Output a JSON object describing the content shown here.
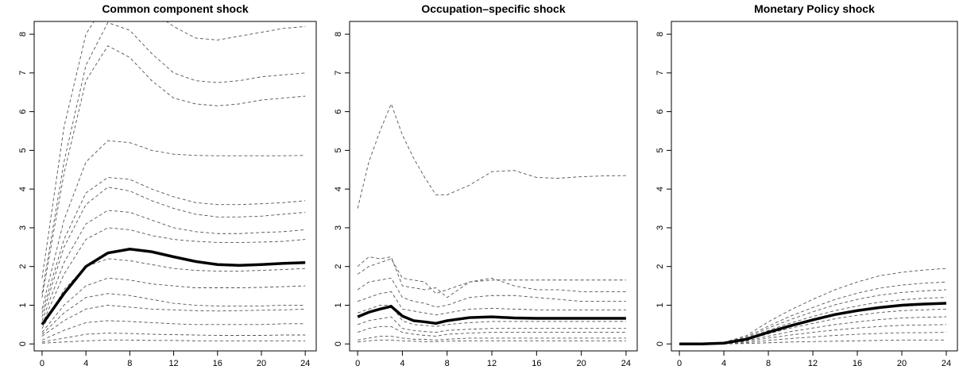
{
  "chart_data": [
    {
      "type": "line",
      "title": "Common component shock",
      "x": [
        0,
        2,
        4,
        6,
        8,
        10,
        12,
        14,
        16,
        18,
        20,
        22,
        24
      ],
      "xlim": [
        -0.72,
        25.0
      ],
      "ylim": [
        -0.18,
        8.33
      ],
      "xticks": [
        0,
        4,
        8,
        12,
        16,
        20,
        24
      ],
      "yticks": [
        0,
        1,
        2,
        3,
        4,
        5,
        6,
        7,
        8
      ],
      "series": [
        {
          "color": "#555555",
          "dashed": true,
          "values": [
            1.7,
            5.6,
            8.0,
            8.9,
            9.0,
            8.6,
            8.2,
            7.9,
            7.85,
            7.95,
            8.05,
            8.15,
            8.2
          ]
        },
        {
          "color": "#555555",
          "dashed": true,
          "values": [
            1.3,
            4.7,
            7.2,
            8.3,
            8.1,
            7.5,
            7.0,
            6.8,
            6.75,
            6.8,
            6.9,
            6.95,
            7.0
          ]
        },
        {
          "color": "#555555",
          "dashed": true,
          "values": [
            1.2,
            4.4,
            6.8,
            7.7,
            7.4,
            6.8,
            6.35,
            6.2,
            6.15,
            6.2,
            6.3,
            6.35,
            6.4
          ]
        },
        {
          "color": "#555555",
          "dashed": true,
          "values": [
            0.9,
            3.2,
            4.7,
            5.25,
            5.2,
            5.0,
            4.9,
            4.87,
            4.86,
            4.86,
            4.86,
            4.86,
            4.87
          ]
        },
        {
          "color": "#555555",
          "dashed": true,
          "values": [
            0.8,
            2.7,
            3.9,
            4.3,
            4.25,
            4.0,
            3.8,
            3.65,
            3.6,
            3.6,
            3.62,
            3.65,
            3.7
          ]
        },
        {
          "color": "#555555",
          "dashed": true,
          "values": [
            0.7,
            2.5,
            3.6,
            4.05,
            3.95,
            3.7,
            3.5,
            3.35,
            3.28,
            3.28,
            3.3,
            3.35,
            3.4
          ]
        },
        {
          "color": "#555555",
          "dashed": true,
          "values": [
            0.6,
            2.1,
            3.1,
            3.45,
            3.4,
            3.2,
            3.0,
            2.9,
            2.85,
            2.85,
            2.88,
            2.9,
            2.95
          ]
        },
        {
          "color": "#555555",
          "dashed": true,
          "values": [
            0.5,
            1.8,
            2.7,
            3.0,
            2.95,
            2.8,
            2.7,
            2.65,
            2.62,
            2.62,
            2.63,
            2.65,
            2.7
          ]
        },
        {
          "color": "#555555",
          "dashed": true,
          "values": [
            0.4,
            1.4,
            2.0,
            2.2,
            2.15,
            2.05,
            1.95,
            1.9,
            1.88,
            1.88,
            1.9,
            1.92,
            1.95
          ]
        },
        {
          "color": "#555555",
          "dashed": true,
          "values": [
            0.3,
            1.0,
            1.5,
            1.7,
            1.65,
            1.55,
            1.5,
            1.45,
            1.45,
            1.45,
            1.46,
            1.48,
            1.5
          ]
        },
        {
          "color": "#555555",
          "dashed": true,
          "values": [
            0.25,
            0.8,
            1.2,
            1.3,
            1.25,
            1.15,
            1.05,
            1.0,
            0.98,
            0.98,
            0.98,
            1.0,
            1.0
          ]
        },
        {
          "color": "#555555",
          "dashed": true,
          "values": [
            0.2,
            0.6,
            0.9,
            1.0,
            0.95,
            0.9,
            0.88,
            0.86,
            0.85,
            0.86,
            0.87,
            0.88,
            0.9
          ]
        },
        {
          "color": "#555555",
          "dashed": true,
          "values": [
            0.1,
            0.35,
            0.55,
            0.6,
            0.58,
            0.55,
            0.52,
            0.5,
            0.5,
            0.5,
            0.5,
            0.52,
            0.52
          ]
        },
        {
          "color": "#555555",
          "dashed": true,
          "values": [
            0.05,
            0.15,
            0.25,
            0.28,
            0.27,
            0.25,
            0.24,
            0.23,
            0.22,
            0.22,
            0.22,
            0.23,
            0.23
          ]
        },
        {
          "color": "#555555",
          "dashed": true,
          "values": [
            0.02,
            0.05,
            0.08,
            0.1,
            0.1,
            0.09,
            0.09,
            0.08,
            0.08,
            0.08,
            0.08,
            0.08,
            0.08
          ]
        },
        {
          "color": "#000000",
          "dashed": false,
          "values": [
            0.5,
            1.3,
            2.0,
            2.35,
            2.45,
            2.38,
            2.25,
            2.13,
            2.05,
            2.03,
            2.05,
            2.08,
            2.1
          ]
        }
      ]
    },
    {
      "type": "line",
      "title": "Occupation–specific shock",
      "x": [
        0,
        1,
        2,
        3,
        4,
        5,
        6,
        7,
        8,
        10,
        12,
        14,
        16,
        18,
        20,
        22,
        24
      ],
      "xlim": [
        -0.72,
        25.0
      ],
      "ylim": [
        -0.18,
        8.33
      ],
      "xticks": [
        0,
        4,
        8,
        12,
        16,
        20,
        24
      ],
      "yticks": [
        0,
        1,
        2,
        3,
        4,
        5,
        6,
        7,
        8
      ],
      "series": [
        {
          "color": "#555555",
          "dashed": true,
          "values": [
            3.5,
            4.7,
            5.5,
            6.2,
            5.4,
            4.8,
            4.3,
            3.85,
            3.85,
            4.1,
            4.45,
            4.48,
            4.3,
            4.28,
            4.32,
            4.34,
            4.35
          ]
        },
        {
          "color": "#555555",
          "dashed": true,
          "values": [
            2.0,
            2.25,
            2.2,
            2.25,
            1.5,
            1.45,
            1.4,
            1.45,
            1.2,
            1.6,
            1.65,
            1.65,
            1.65,
            1.65,
            1.65,
            1.65,
            1.65
          ]
        },
        {
          "color": "#555555",
          "dashed": true,
          "values": [
            1.8,
            2.0,
            2.1,
            2.2,
            1.7,
            1.65,
            1.6,
            1.3,
            1.4,
            1.6,
            1.7,
            1.5,
            1.4,
            1.4,
            1.35,
            1.35,
            1.35
          ]
        },
        {
          "color": "#555555",
          "dashed": true,
          "values": [
            1.4,
            1.6,
            1.65,
            1.7,
            1.2,
            1.1,
            1.05,
            0.95,
            1.0,
            1.2,
            1.25,
            1.25,
            1.2,
            1.15,
            1.1,
            1.1,
            1.1
          ]
        },
        {
          "color": "#555555",
          "dashed": true,
          "values": [
            1.1,
            1.2,
            1.3,
            1.35,
            0.9,
            0.85,
            0.8,
            0.75,
            0.8,
            0.9,
            0.92,
            0.9,
            0.88,
            0.88,
            0.88,
            0.88,
            0.88
          ]
        },
        {
          "color": "#555555",
          "dashed": true,
          "values": [
            0.8,
            0.9,
            1.0,
            1.0,
            0.6,
            0.5,
            0.48,
            0.45,
            0.5,
            0.55,
            0.58,
            0.58,
            0.58,
            0.58,
            0.58,
            0.58,
            0.58
          ]
        },
        {
          "color": "#555555",
          "dashed": true,
          "values": [
            0.5,
            0.6,
            0.65,
            0.7,
            0.4,
            0.35,
            0.32,
            0.3,
            0.35,
            0.38,
            0.4,
            0.4,
            0.4,
            0.4,
            0.4,
            0.4,
            0.4
          ]
        },
        {
          "color": "#555555",
          "dashed": true,
          "values": [
            0.3,
            0.4,
            0.45,
            0.45,
            0.3,
            0.25,
            0.22,
            0.2,
            0.25,
            0.28,
            0.3,
            0.3,
            0.3,
            0.3,
            0.3,
            0.3,
            0.3
          ]
        },
        {
          "color": "#555555",
          "dashed": true,
          "values": [
            0.1,
            0.15,
            0.2,
            0.2,
            0.15,
            0.12,
            0.12,
            0.1,
            0.12,
            0.15,
            0.15,
            0.15,
            0.15,
            0.15,
            0.15,
            0.15,
            0.15
          ]
        },
        {
          "color": "#555555",
          "dashed": true,
          "values": [
            0.05,
            0.08,
            0.1,
            0.1,
            0.08,
            0.07,
            0.06,
            0.06,
            0.07,
            0.08,
            0.08,
            0.08,
            0.08,
            0.08,
            0.08,
            0.08,
            0.08
          ]
        },
        {
          "color": "#000000",
          "dashed": false,
          "values": [
            0.7,
            0.82,
            0.9,
            0.97,
            0.72,
            0.6,
            0.57,
            0.53,
            0.6,
            0.68,
            0.7,
            0.67,
            0.66,
            0.66,
            0.66,
            0.66,
            0.66
          ]
        }
      ]
    },
    {
      "type": "line",
      "title": "Monetary Policy shock",
      "x": [
        0,
        2,
        4,
        6,
        8,
        10,
        12,
        14,
        16,
        18,
        20,
        22,
        24
      ],
      "xlim": [
        -0.72,
        25.0
      ],
      "ylim": [
        -0.18,
        8.33
      ],
      "xticks": [
        0,
        4,
        8,
        12,
        16,
        20,
        24
      ],
      "yticks": [
        0,
        1,
        2,
        3,
        4,
        5,
        6,
        7,
        8
      ],
      "series": [
        {
          "color": "#555555",
          "dashed": true,
          "values": [
            0,
            -0.02,
            0.04,
            0.21,
            0.57,
            0.88,
            1.15,
            1.4,
            1.6,
            1.76,
            1.85,
            1.91,
            1.95
          ]
        },
        {
          "color": "#555555",
          "dashed": true,
          "values": [
            0,
            -0.02,
            0.03,
            0.18,
            0.46,
            0.72,
            0.94,
            1.15,
            1.31,
            1.44,
            1.52,
            1.57,
            1.6
          ]
        },
        {
          "color": "#555555",
          "dashed": true,
          "values": [
            0,
            -0.02,
            0.03,
            0.15,
            0.41,
            0.63,
            0.83,
            1.01,
            1.15,
            1.26,
            1.33,
            1.37,
            1.4
          ]
        },
        {
          "color": "#555555",
          "dashed": true,
          "values": [
            0,
            -0.01,
            0.02,
            0.13,
            0.35,
            0.54,
            0.71,
            0.86,
            0.98,
            1.08,
            1.14,
            1.18,
            1.2
          ]
        },
        {
          "color": "#555555",
          "dashed": true,
          "values": [
            0,
            -0.01,
            0.02,
            0.1,
            0.26,
            0.41,
            0.53,
            0.65,
            0.74,
            0.81,
            0.86,
            0.88,
            0.9
          ]
        },
        {
          "color": "#555555",
          "dashed": true,
          "values": [
            0,
            -0.01,
            0.01,
            0.08,
            0.2,
            0.32,
            0.41,
            0.5,
            0.57,
            0.63,
            0.67,
            0.69,
            0.7
          ]
        },
        {
          "color": "#555555",
          "dashed": true,
          "values": [
            0,
            0,
            0.01,
            0.06,
            0.15,
            0.23,
            0.3,
            0.36,
            0.41,
            0.45,
            0.48,
            0.49,
            0.5
          ]
        },
        {
          "color": "#555555",
          "dashed": true,
          "values": [
            0,
            0,
            0.01,
            0.03,
            0.09,
            0.14,
            0.18,
            0.22,
            0.25,
            0.27,
            0.29,
            0.29,
            0.3
          ]
        },
        {
          "color": "#555555",
          "dashed": true,
          "values": [
            0,
            0,
            0,
            0.01,
            0.03,
            0.05,
            0.06,
            0.07,
            0.08,
            0.09,
            0.1,
            0.1,
            0.1
          ]
        },
        {
          "color": "#000000",
          "dashed": false,
          "values": [
            0,
            0,
            0.02,
            0.12,
            0.3,
            0.47,
            0.62,
            0.76,
            0.86,
            0.94,
            1.0,
            1.03,
            1.05
          ]
        }
      ]
    }
  ]
}
